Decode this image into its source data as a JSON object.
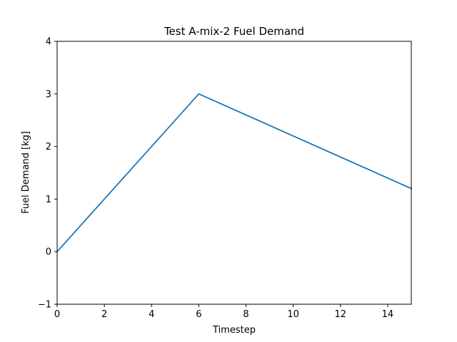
{
  "chart_data": {
    "type": "line",
    "title": "Test A-mix-2 Fuel Demand",
    "xlabel": "Timestep",
    "ylabel": "Fuel Demand [kg]",
    "xlim": [
      0,
      15
    ],
    "ylim": [
      -1,
      4
    ],
    "xticks": [
      0,
      2,
      4,
      6,
      8,
      10,
      12,
      14
    ],
    "yticks": [
      -1,
      0,
      1,
      2,
      3,
      4
    ],
    "xtick_labels": [
      "0",
      "2",
      "4",
      "6",
      "8",
      "10",
      "12",
      "14"
    ],
    "ytick_labels": [
      "−1",
      "0",
      "1",
      "2",
      "3",
      "4"
    ],
    "grid": false,
    "series": [
      {
        "color": "#1f77b4",
        "x": [
          0,
          6,
          15
        ],
        "y": [
          0,
          3,
          1.2
        ]
      }
    ]
  }
}
